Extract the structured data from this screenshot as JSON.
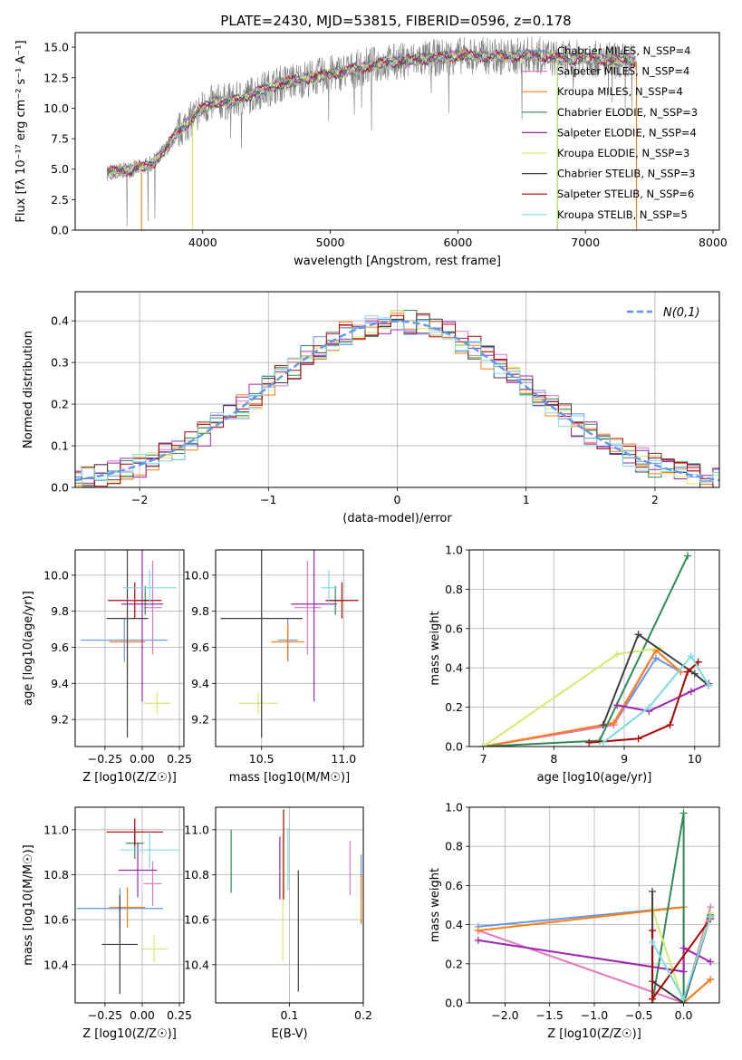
{
  "figure": {
    "title": "PLATE=2430, MJD=53815, FIBERID=0596, z=0.178"
  },
  "series_colors": [
    "#6495ed",
    "#e377c2",
    "#ff7f0e",
    "#2e8b57",
    "#9c27b0",
    "#d4ea6b",
    "#404040",
    "#b00000",
    "#7ddbe4"
  ],
  "chart_data": [
    {
      "id": "spectrum",
      "type": "line",
      "xlabel": "wavelength [Angstrom, rest frame]",
      "ylabel": "Flux [fλ 10⁻¹⁷ erg cm⁻² s⁻¹ A⁻¹]",
      "xlim": [
        3000,
        8050
      ],
      "ylim": [
        0,
        16.2
      ],
      "xticks": [
        4000,
        5000,
        6000,
        7000,
        8000
      ],
      "yticks": [
        0.0,
        2.5,
        5.0,
        7.5,
        10.0,
        12.5,
        15.0
      ],
      "ytick_labels": [
        "0.0",
        "2.5",
        "5.0",
        "7.5",
        "10.0",
        "12.5",
        "15.0"
      ],
      "legend": "upper-right",
      "legend_entries": [
        "Chabrier MILES, N_SSP=4",
        "Salpeter MILES, N_SSP=4",
        "Kroupa MILES, N_SSP=4",
        "Chabrier ELODIE, N_SSP=3",
        "Salpeter ELODIE, N_SSP=4",
        "Kroupa ELODIE, N_SSP=3",
        "Chabrier STELIB, N_SSP=3",
        "Salpeter STELIB, N_SSP=6",
        "Kroupa STELIB, N_SSP=5"
      ],
      "continuum": [
        [
          3250,
          4.7
        ],
        [
          3450,
          5.0
        ],
        [
          3600,
          5.4
        ],
        [
          3700,
          6.5
        ],
        [
          3800,
          8.0
        ],
        [
          3900,
          9.0
        ],
        [
          4000,
          10.0
        ],
        [
          4100,
          10.5
        ],
        [
          4250,
          10.6
        ],
        [
          4400,
          11.2
        ],
        [
          4600,
          12.0
        ],
        [
          4800,
          12.4
        ],
        [
          5000,
          12.8
        ],
        [
          5200,
          13.2
        ],
        [
          5400,
          13.7
        ],
        [
          5600,
          13.9
        ],
        [
          5800,
          14.1
        ],
        [
          6000,
          14.3
        ],
        [
          6200,
          14.3
        ],
        [
          6400,
          14.2
        ],
        [
          6600,
          14.4
        ],
        [
          6800,
          14.0
        ],
        [
          7000,
          14.1
        ],
        [
          7200,
          13.9
        ],
        [
          7400,
          13.8
        ]
      ],
      "dropouts": [
        {
          "series": 2,
          "x": 3520
        },
        {
          "series": 5,
          "x": 3920
        },
        {
          "series": 5,
          "x": 6780
        },
        {
          "series": 3,
          "x": 6780
        },
        {
          "series": 2,
          "x": 7400
        }
      ]
    },
    {
      "id": "residuals",
      "type": "area",
      "xlabel": "(data-model)/error",
      "ylabel": "Normed distribution",
      "xlim": [
        -2.5,
        2.5
      ],
      "ylim": [
        0,
        0.47
      ],
      "xticks": [
        -2,
        -1,
        0,
        1,
        2
      ],
      "xtick_labels": [
        "−2",
        "−1",
        "0",
        "1",
        "2"
      ],
      "yticks": [
        0.0,
        0.1,
        0.2,
        0.3,
        0.4
      ],
      "ytick_labels": [
        "0.0",
        "0.1",
        "0.2",
        "0.3",
        "0.4"
      ],
      "grid": true,
      "legend": "upper-right",
      "legend_entries": [
        "N(0,1)"
      ],
      "reference_line": "gaussian N(0,1)",
      "bin_width": 0.1
    },
    {
      "id": "age_vs_Z",
      "type": "scatter",
      "xlabel": "Z [log10(Z/Z☉)]",
      "ylabel": "age  [log10(age/yr)]",
      "xlim": [
        -0.45,
        0.28
      ],
      "ylim": [
        9.05,
        10.14
      ],
      "xticks": [
        -0.25,
        0.0,
        0.25
      ],
      "xtick_labels": [
        "−0.25",
        "0.00",
        "0.25"
      ],
      "yticks": [
        9.2,
        9.4,
        9.6,
        9.8,
        10.0
      ],
      "ytick_labels": [
        "9.2",
        "9.4",
        "9.6",
        "9.8",
        "10.0"
      ],
      "grid": true,
      "points": [
        {
          "series": 0,
          "x": -0.12,
          "y": 9.64,
          "xerr": 0.29,
          "yerr": 0.12
        },
        {
          "series": 1,
          "x": 0.07,
          "y": 9.82,
          "xerr": 0.06,
          "yerr": 0.26
        },
        {
          "series": 2,
          "x": -0.1,
          "y": 9.63,
          "xerr": 0.12,
          "yerr": 0.18
        },
        {
          "series": 3,
          "x": 0.02,
          "y": 9.86,
          "xerr": 0.05,
          "yerr": 0.08
        },
        {
          "series": 4,
          "x": 0.0,
          "y": 9.84,
          "xerr": 0.14,
          "yerr": 0.54
        },
        {
          "series": 5,
          "x": 0.1,
          "y": 9.29,
          "xerr": 0.09,
          "yerr": 0.06
        },
        {
          "series": 6,
          "x": -0.1,
          "y": 9.76,
          "xerr": 0.14,
          "yerr": 0.66
        },
        {
          "series": 7,
          "x": -0.05,
          "y": 9.86,
          "xerr": 0.18,
          "yerr": 0.1
        },
        {
          "series": 8,
          "x": 0.05,
          "y": 9.93,
          "xerr": 0.18,
          "yerr": 0.1
        }
      ]
    },
    {
      "id": "age_vs_mass",
      "type": "scatter",
      "xlabel": "mass [log10(M/M☉)]",
      "ylabel": "",
      "xlim": [
        10.22,
        11.12
      ],
      "ylim": [
        9.05,
        10.14
      ],
      "xticks": [
        10.5,
        11.0
      ],
      "xtick_labels": [
        "10.5",
        "11.0"
      ],
      "yticks": [
        9.2,
        9.4,
        9.6,
        9.8,
        10.0
      ],
      "ytick_labels": [
        "9.2",
        "9.4",
        "9.6",
        "9.8",
        "10.0"
      ],
      "grid": true,
      "points": [
        {
          "series": 0,
          "x": 10.66,
          "y": 9.64,
          "xerr": 0.06,
          "yerr": 0.12
        },
        {
          "series": 1,
          "x": 10.78,
          "y": 9.82,
          "xerr": 0.08,
          "yerr": 0.26
        },
        {
          "series": 2,
          "x": 10.66,
          "y": 9.63,
          "xerr": 0.1,
          "yerr": 0.1
        },
        {
          "series": 3,
          "x": 10.95,
          "y": 9.86,
          "xerr": 0.05,
          "yerr": 0.08
        },
        {
          "series": 4,
          "x": 10.82,
          "y": 9.84,
          "xerr": 0.14,
          "yerr": 0.54
        },
        {
          "series": 5,
          "x": 10.48,
          "y": 9.29,
          "xerr": 0.12,
          "yerr": 0.06
        },
        {
          "series": 6,
          "x": 10.5,
          "y": 9.76,
          "xerr": 0.25,
          "yerr": 0.66
        },
        {
          "series": 7,
          "x": 10.99,
          "y": 9.86,
          "xerr": 0.1,
          "yerr": 0.1
        },
        {
          "series": 8,
          "x": 10.91,
          "y": 9.93,
          "xerr": 0.05,
          "yerr": 0.1
        }
      ]
    },
    {
      "id": "weight_vs_age",
      "type": "line",
      "xlabel": "age  [log10(age/yr)]",
      "ylabel": "mass weight",
      "xlim": [
        6.8,
        10.35
      ],
      "ylim": [
        0,
        1.0
      ],
      "xticks": [
        7,
        8,
        9,
        10
      ],
      "yticks": [
        0.0,
        0.2,
        0.4,
        0.6,
        0.8,
        1.0
      ],
      "ytick_labels": [
        "0.0",
        "0.2",
        "0.4",
        "0.6",
        "0.8",
        "1.0"
      ],
      "grid": true,
      "series": [
        {
          "color_index": 0,
          "points": [
            [
              7.0,
              0.0
            ],
            [
              8.85,
              0.11
            ],
            [
              9.45,
              0.45
            ],
            [
              9.8,
              0.38
            ]
          ]
        },
        {
          "color_index": 1,
          "points": [
            [
              7.0,
              0.0
            ],
            [
              8.85,
              0.11
            ],
            [
              9.45,
              0.49
            ],
            [
              9.8,
              0.38
            ]
          ]
        },
        {
          "color_index": 2,
          "points": [
            [
              7.0,
              0.0
            ],
            [
              8.85,
              0.12
            ],
            [
              9.45,
              0.49
            ],
            [
              9.8,
              0.38
            ]
          ]
        },
        {
          "color_index": 3,
          "points": [
            [
              7.0,
              0.0
            ],
            [
              8.65,
              0.03
            ],
            [
              9.9,
              0.97
            ]
          ]
        },
        {
          "color_index": 4,
          "points": [
            [
              8.9,
              0.21
            ],
            [
              9.35,
              0.18
            ],
            [
              9.95,
              0.28
            ],
            [
              10.2,
              0.32
            ]
          ]
        },
        {
          "color_index": 5,
          "points": [
            [
              7.0,
              0.0
            ],
            [
              8.9,
              0.47
            ],
            [
              9.5,
              0.5
            ]
          ]
        },
        {
          "color_index": 6,
          "points": [
            [
              8.7,
              0.11
            ],
            [
              9.2,
              0.57
            ],
            [
              10.0,
              0.37
            ],
            [
              10.2,
              0.31
            ]
          ]
        },
        {
          "color_index": 7,
          "points": [
            [
              8.5,
              0.02
            ],
            [
              9.2,
              0.04
            ],
            [
              9.65,
              0.11
            ],
            [
              9.9,
              0.38
            ],
            [
              10.05,
              0.43
            ]
          ]
        },
        {
          "color_index": 8,
          "points": [
            [
              8.7,
              0.02
            ],
            [
              9.35,
              0.2
            ],
            [
              9.95,
              0.46
            ],
            [
              10.2,
              0.31
            ]
          ]
        }
      ]
    },
    {
      "id": "mass_vs_Z",
      "type": "scatter",
      "xlabel": "Z [log10(Z/Z☉)]",
      "ylabel": "mass [log10(M/M☉)]",
      "xlim": [
        -0.45,
        0.28
      ],
      "ylim": [
        10.23,
        11.1
      ],
      "xticks": [
        -0.25,
        0.0,
        0.25
      ],
      "xtick_labels": [
        "−0.25",
        "0.00",
        "0.25"
      ],
      "yticks": [
        10.4,
        10.6,
        10.8,
        11.0
      ],
      "ytick_labels": [
        "10.4",
        "10.6",
        "10.8",
        "11.0"
      ],
      "grid": true,
      "points": [
        {
          "series": 0,
          "x": -0.15,
          "y": 10.65,
          "xerr": 0.29,
          "yerr": 0.09
        },
        {
          "series": 1,
          "x": 0.07,
          "y": 10.76,
          "xerr": 0.06,
          "yerr": 0.1
        },
        {
          "series": 2,
          "x": -0.1,
          "y": 10.655,
          "xerr": 0.12,
          "yerr": 0.09
        },
        {
          "series": 3,
          "x": -0.05,
          "y": 10.94,
          "xerr": 0.06,
          "yerr": 0.07
        },
        {
          "series": 4,
          "x": -0.03,
          "y": 10.82,
          "xerr": 0.13,
          "yerr": 0.12
        },
        {
          "series": 5,
          "x": 0.08,
          "y": 10.47,
          "xerr": 0.09,
          "yerr": 0.06
        },
        {
          "series": 6,
          "x": -0.15,
          "y": 10.49,
          "xerr": 0.12,
          "yerr": 0.22
        },
        {
          "series": 7,
          "x": -0.05,
          "y": 10.99,
          "xerr": 0.19,
          "yerr": 0.06
        },
        {
          "series": 8,
          "x": 0.05,
          "y": 10.91,
          "xerr": 0.2,
          "yerr": 0.08
        }
      ]
    },
    {
      "id": "mass_vs_ebv",
      "type": "scatter",
      "xlabel": "E(B-V)",
      "ylabel": "",
      "xlim": [
        0.0,
        0.2
      ],
      "ylim": [
        10.23,
        11.1
      ],
      "xticks": [
        0.1,
        0.2
      ],
      "xtick_labels": [
        "0.1",
        "0.2"
      ],
      "yticks": [
        10.4,
        10.6,
        10.8,
        11.0
      ],
      "ytick_labels": [
        "10.4",
        "10.6",
        "10.8",
        "11.0"
      ],
      "grid": true,
      "points": [
        {
          "series": 0,
          "x": 0.197,
          "y": 10.79,
          "xerr": 0,
          "yerr": 0.1
        },
        {
          "series": 1,
          "x": 0.182,
          "y": 10.83,
          "xerr": 0,
          "yerr": 0.12
        },
        {
          "series": 2,
          "x": 0.197,
          "y": 10.69,
          "xerr": 0,
          "yerr": 0.11
        },
        {
          "series": 3,
          "x": 0.021,
          "y": 10.86,
          "xerr": 0,
          "yerr": 0.14
        },
        {
          "series": 4,
          "x": 0.087,
          "y": 10.83,
          "xerr": 0,
          "yerr": 0.14
        },
        {
          "series": 5,
          "x": 0.091,
          "y": 10.7,
          "xerr": 0,
          "yerr": 0.28
        },
        {
          "series": 6,
          "x": 0.112,
          "y": 10.55,
          "xerr": 0,
          "yerr": 0.27
        },
        {
          "series": 7,
          "x": 0.092,
          "y": 10.89,
          "xerr": 0,
          "yerr": 0.2
        },
        {
          "series": 8,
          "x": 0.098,
          "y": 10.87,
          "xerr": 0,
          "yerr": 0.14
        }
      ]
    },
    {
      "id": "weight_vs_Z",
      "type": "line",
      "xlabel": "Z [log10(Z/Z☉)]",
      "ylabel": "mass weight",
      "xlim": [
        -2.4,
        0.4
      ],
      "ylim": [
        0,
        1.0
      ],
      "xticks": [
        -2.0,
        -1.5,
        -1.0,
        -0.5,
        0.0
      ],
      "xtick_labels": [
        "−2.0",
        "−1.5",
        "−1.0",
        "−0.5",
        "0.0"
      ],
      "yticks": [
        0.0,
        0.2,
        0.4,
        0.6,
        0.8,
        1.0
      ],
      "ytick_labels": [
        "0.0",
        "0.2",
        "0.4",
        "0.6",
        "0.8",
        "1.0"
      ],
      "grid": true,
      "series": [
        {
          "color_index": 0,
          "points": [
            [
              -2.3,
              0.39
            ],
            [
              0.0,
              0.49
            ],
            [
              0.0,
              0.0
            ],
            [
              0.3,
              0.12
            ]
          ]
        },
        {
          "color_index": 1,
          "points": [
            [
              -2.3,
              0.37
            ],
            [
              0.0,
              0.0
            ],
            [
              0.3,
              0.49
            ]
          ]
        },
        {
          "color_index": 2,
          "points": [
            [
              -2.3,
              0.37
            ],
            [
              0.0,
              0.49
            ],
            [
              0.0,
              0.0
            ],
            [
              0.3,
              0.12
            ]
          ]
        },
        {
          "color_index": 3,
          "points": [
            [
              -0.35,
              0.0
            ],
            [
              0.0,
              0.97
            ],
            [
              0.0,
              0.0
            ],
            [
              0.3,
              0.45
            ]
          ]
        },
        {
          "color_index": 4,
          "points": [
            [
              -2.3,
              0.32
            ],
            [
              0.0,
              0.16
            ],
            [
              0.0,
              0.28
            ],
            [
              0.3,
              0.21
            ]
          ]
        },
        {
          "color_index": 5,
          "points": [
            [
              -0.35,
              0.48
            ],
            [
              0.0,
              0.0
            ],
            [
              0.3,
              0.46
            ]
          ]
        },
        {
          "color_index": 6,
          "points": [
            [
              -0.35,
              0.57
            ],
            [
              -0.35,
              0.11
            ],
            [
              0.0,
              0.0
            ],
            [
              0.3,
              0.44
            ]
          ]
        },
        {
          "color_index": 7,
          "points": [
            [
              -0.35,
              0.37
            ],
            [
              -0.35,
              0.02
            ],
            [
              0.3,
              0.43
            ]
          ]
        },
        {
          "color_index": 8,
          "points": [
            [
              -0.35,
              0.31
            ],
            [
              0.0,
              0.02
            ],
            [
              0.3,
              0.44
            ]
          ]
        }
      ]
    }
  ]
}
